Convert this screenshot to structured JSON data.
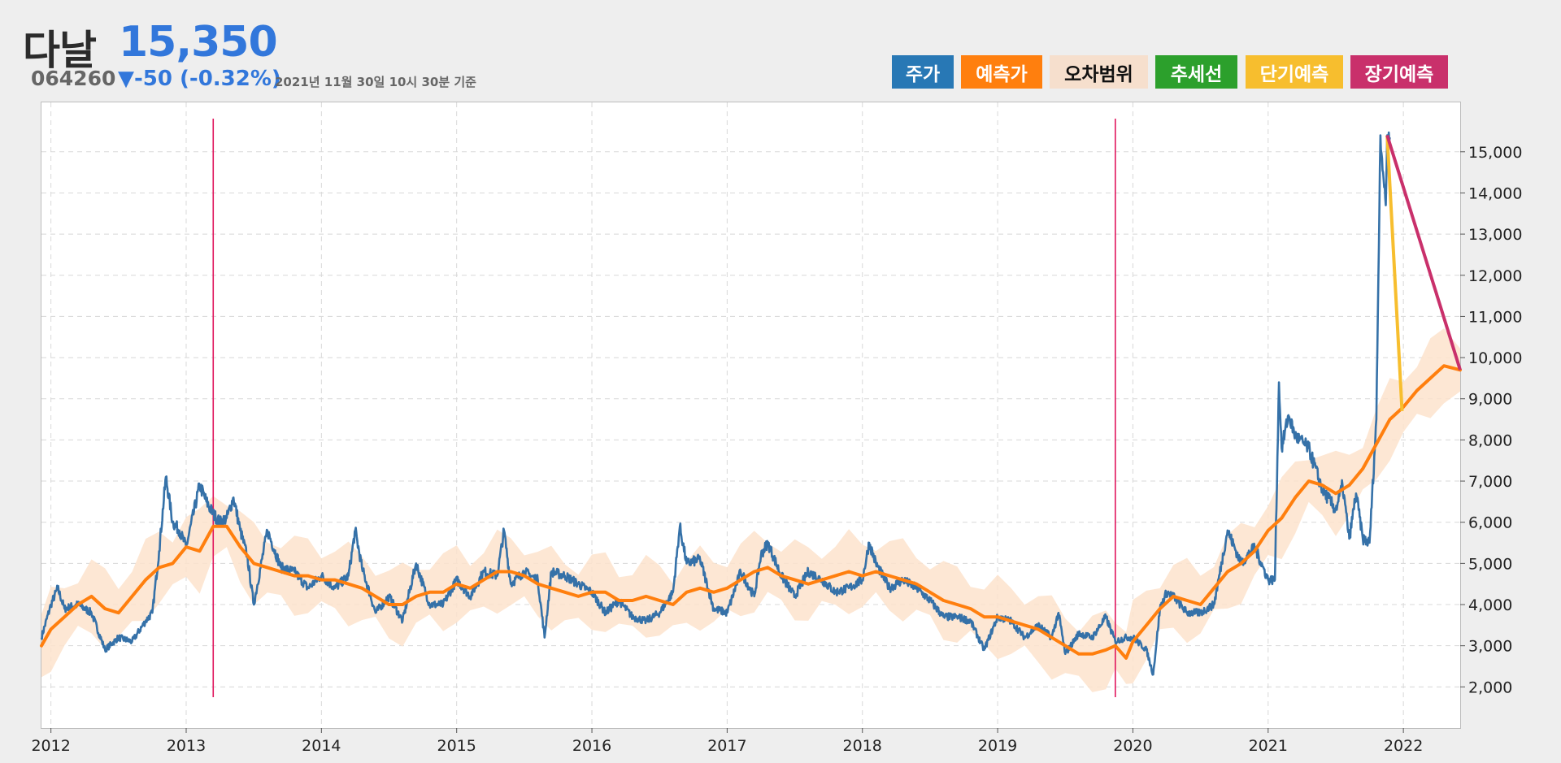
{
  "header": {
    "name": "다날",
    "price": "15,350",
    "code": "064260",
    "change": "▼-50 (-0.32%)",
    "as_of": "2021년 11월 30일 10시 30분 기준"
  },
  "legend": [
    {
      "key": "price",
      "label": "주가",
      "bg": "#2878b5",
      "color": "#ffffff"
    },
    {
      "key": "predicted",
      "label": "예측가",
      "bg": "#ff7f0e",
      "color": "#ffffff"
    },
    {
      "key": "error-range",
      "label": "오차범위",
      "bg": "#f6dfcd",
      "color": "#111111"
    },
    {
      "key": "trend",
      "label": "추세선",
      "bg": "#2ca02c",
      "color": "#ffffff"
    },
    {
      "key": "short-term",
      "label": "단기예측",
      "bg": "#f7be2e",
      "color": "#ffffff"
    },
    {
      "key": "long-term",
      "label": "장기예측",
      "bg": "#c9306b",
      "color": "#ffffff"
    }
  ],
  "colors": {
    "price": "#3571a8",
    "predicted": "#ff7f0e",
    "band": "#fde3cc",
    "short_term": "#f7be2e",
    "long_term": "#c9306b",
    "event_line": "#e0165d"
  },
  "chart_data": {
    "type": "line",
    "title": "",
    "xlabel": "",
    "ylabel": "",
    "x_unit": "year (decimal)",
    "xlim": [
      2011.93,
      2022.42
    ],
    "ylim": [
      1000,
      16200
    ],
    "y_axis_side": "right",
    "grid": true,
    "x_ticks": [
      2012,
      2013,
      2014,
      2015,
      2016,
      2017,
      2018,
      2019,
      2020,
      2021,
      2022
    ],
    "x_tick_labels": [
      "2012",
      "2013",
      "2014",
      "2015",
      "2016",
      "2017",
      "2018",
      "2019",
      "2020",
      "2021",
      "2022"
    ],
    "y_ticks": [
      2000,
      3000,
      4000,
      5000,
      6000,
      7000,
      8000,
      9000,
      10000,
      11000,
      12000,
      13000,
      14000,
      15000
    ],
    "y_tick_labels": [
      "2,000",
      "3,000",
      "4,000",
      "5,000",
      "6,000",
      "7,000",
      "8,000",
      "9,000",
      "10,000",
      "11,000",
      "12,000",
      "13,000",
      "14,000",
      "15,000"
    ],
    "event_lines": [
      2013.2,
      2019.87
    ],
    "series": [
      {
        "name": "주가",
        "x": [
          2011.93,
          2012.0,
          2012.05,
          2012.1,
          2012.2,
          2012.3,
          2012.4,
          2012.5,
          2012.6,
          2012.7,
          2012.75,
          2012.8,
          2012.85,
          2012.9,
          2012.95,
          2013.0,
          2013.1,
          2013.15,
          2013.2,
          2013.25,
          2013.3,
          2013.35,
          2013.4,
          2013.45,
          2013.5,
          2013.6,
          2013.7,
          2013.8,
          2013.9,
          2014.0,
          2014.1,
          2014.2,
          2014.25,
          2014.3,
          2014.4,
          2014.5,
          2014.6,
          2014.7,
          2014.8,
          2014.9,
          2015.0,
          2015.1,
          2015.2,
          2015.3,
          2015.35,
          2015.4,
          2015.5,
          2015.6,
          2015.65,
          2015.7,
          2015.8,
          2015.9,
          2016.0,
          2016.1,
          2016.2,
          2016.3,
          2016.4,
          2016.5,
          2016.6,
          2016.65,
          2016.7,
          2016.8,
          2016.9,
          2017.0,
          2017.1,
          2017.2,
          2017.25,
          2017.3,
          2017.4,
          2017.5,
          2017.6,
          2017.7,
          2017.8,
          2017.9,
          2018.0,
          2018.05,
          2018.1,
          2018.2,
          2018.3,
          2018.4,
          2018.5,
          2018.6,
          2018.7,
          2018.8,
          2018.9,
          2019.0,
          2019.1,
          2019.2,
          2019.3,
          2019.4,
          2019.45,
          2019.5,
          2019.6,
          2019.7,
          2019.8,
          2019.87,
          2019.95,
          2020.0,
          2020.1,
          2020.15,
          2020.2,
          2020.25,
          2020.3,
          2020.4,
          2020.5,
          2020.6,
          2020.7,
          2020.8,
          2020.9,
          2021.0,
          2021.05,
          2021.08,
          2021.1,
          2021.15,
          2021.2,
          2021.3,
          2021.4,
          2021.5,
          2021.55,
          2021.6,
          2021.65,
          2021.7,
          2021.75,
          2021.8,
          2021.83,
          2021.85,
          2021.87,
          2021.88,
          2021.9
        ],
        "y": [
          3200,
          4000,
          4400,
          3900,
          4000,
          3800,
          2900,
          3200,
          3100,
          3600,
          3800,
          5300,
          7100,
          6000,
          5800,
          5400,
          6900,
          6500,
          6200,
          6000,
          6100,
          6600,
          5800,
          5200,
          4000,
          5800,
          4900,
          4800,
          4400,
          4700,
          4400,
          4700,
          5800,
          4900,
          3800,
          4200,
          3600,
          5000,
          4000,
          4000,
          4600,
          4200,
          4800,
          4700,
          5800,
          4500,
          4800,
          4600,
          3200,
          4800,
          4700,
          4500,
          4300,
          3800,
          4100,
          3700,
          3600,
          3800,
          4300,
          5900,
          5000,
          5100,
          3900,
          3800,
          4800,
          4200,
          5200,
          5500,
          4700,
          4200,
          4800,
          4600,
          4300,
          4400,
          4600,
          5500,
          5000,
          4400,
          4600,
          4400,
          4100,
          3700,
          3700,
          3600,
          2900,
          3700,
          3600,
          3200,
          3500,
          3200,
          3800,
          2800,
          3300,
          3200,
          3700,
          3100,
          3200,
          3200,
          2900,
          2300,
          3900,
          4300,
          4200,
          3800,
          3800,
          4000,
          5800,
          5000,
          5400,
          4600,
          4600,
          9400,
          7800,
          8600,
          8100,
          7800,
          6800,
          6300,
          6900,
          5600,
          6700,
          5600,
          5500,
          8500,
          15400,
          14500,
          13700,
          15400,
          15350
        ]
      },
      {
        "name": "예측가",
        "x": [
          2011.93,
          2012.0,
          2012.1,
          2012.2,
          2012.3,
          2012.4,
          2012.5,
          2012.6,
          2012.7,
          2012.8,
          2012.9,
          2013.0,
          2013.1,
          2013.2,
          2013.3,
          2013.4,
          2013.5,
          2013.6,
          2013.7,
          2013.8,
          2013.9,
          2014.0,
          2014.1,
          2014.2,
          2014.3,
          2014.4,
          2014.5,
          2014.6,
          2014.7,
          2014.8,
          2014.9,
          2015.0,
          2015.1,
          2015.2,
          2015.3,
          2015.4,
          2015.5,
          2015.6,
          2015.7,
          2015.8,
          2015.9,
          2016.0,
          2016.1,
          2016.2,
          2016.3,
          2016.4,
          2016.5,
          2016.6,
          2016.7,
          2016.8,
          2016.9,
          2017.0,
          2017.1,
          2017.2,
          2017.3,
          2017.4,
          2017.5,
          2017.6,
          2017.7,
          2017.8,
          2017.9,
          2018.0,
          2018.1,
          2018.2,
          2018.3,
          2018.4,
          2018.5,
          2018.6,
          2018.7,
          2018.8,
          2018.9,
          2019.0,
          2019.1,
          2019.2,
          2019.3,
          2019.4,
          2019.5,
          2019.6,
          2019.7,
          2019.8,
          2019.87,
          2019.95,
          2020.0,
          2020.1,
          2020.2,
          2020.3,
          2020.4,
          2020.5,
          2020.6,
          2020.7,
          2020.8,
          2020.9,
          2021.0,
          2021.1,
          2021.2,
          2021.3,
          2021.4,
          2021.5,
          2021.6,
          2021.7,
          2021.8,
          2021.9,
          2022.0,
          2022.1,
          2022.2,
          2022.3,
          2022.42
        ],
        "y": [
          3000,
          3400,
          3700,
          4000,
          4200,
          3900,
          3800,
          4200,
          4600,
          4900,
          5000,
          5400,
          5300,
          5900,
          5900,
          5400,
          5000,
          4900,
          4800,
          4700,
          4700,
          4600,
          4600,
          4500,
          4400,
          4200,
          4000,
          4000,
          4200,
          4300,
          4300,
          4500,
          4400,
          4600,
          4800,
          4800,
          4700,
          4500,
          4400,
          4300,
          4200,
          4300,
          4300,
          4100,
          4100,
          4200,
          4100,
          4000,
          4300,
          4400,
          4300,
          4400,
          4600,
          4800,
          4900,
          4700,
          4600,
          4500,
          4600,
          4700,
          4800,
          4700,
          4800,
          4700,
          4600,
          4500,
          4300,
          4100,
          4000,
          3900,
          3700,
          3700,
          3600,
          3500,
          3400,
          3200,
          3000,
          2800,
          2800,
          2900,
          3000,
          2700,
          3100,
          3500,
          3900,
          4200,
          4100,
          4000,
          4400,
          4800,
          5000,
          5300,
          5800,
          6100,
          6600,
          7000,
          6900,
          6700,
          6900,
          7300,
          7900,
          8500,
          8800,
          9200,
          9500,
          9800,
          9700
        ]
      },
      {
        "name": "단기예측",
        "x": [
          2021.88,
          2021.99
        ],
        "y": [
          15400,
          8700
        ]
      },
      {
        "name": "장기예측",
        "x": [
          2021.88,
          2022.42
        ],
        "y": [
          15400,
          9700
        ]
      }
    ],
    "band_halfwidth": 900
  }
}
